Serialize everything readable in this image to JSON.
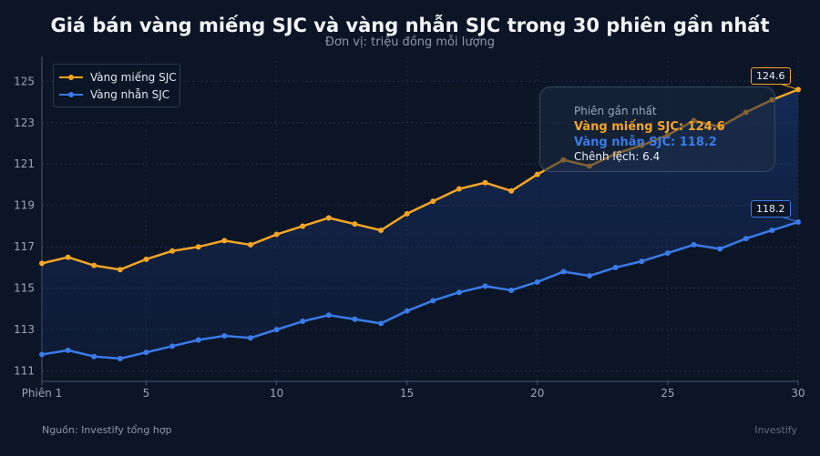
{
  "title": "Giá bán vàng miếng SJC và vàng nhẫn SJC trong 30 phiên gần nhất",
  "subtitle": "Đơn vị: triệu đồng mỗi lượng",
  "footer": {
    "source": "Nguồn: Investify tổng hợp",
    "brand": "Investify"
  },
  "colors": {
    "mieng": "#f5a524",
    "nhan": "#3b7bea",
    "background": "#0b1526"
  },
  "info_box": {
    "header": "Phiên gần nhất",
    "line_mieng": "Vàng miếng SJC: 124.6",
    "line_nhan": "Vàng nhẫn SJC: 118.2",
    "line_diff": "Chênh lệch: 6.4"
  },
  "end_labels": {
    "mieng": "124.6",
    "nhan": "118.2"
  },
  "chart_data": {
    "type": "line",
    "title": "Giá bán vàng miếng SJC và vàng nhẫn SJC trong 30 phiên gần nhất",
    "subtitle": "Đơn vị: triệu đồng mỗi lượng",
    "x": [
      1,
      2,
      3,
      4,
      5,
      6,
      7,
      8,
      9,
      10,
      11,
      12,
      13,
      14,
      15,
      16,
      17,
      18,
      19,
      20,
      21,
      22,
      23,
      24,
      25,
      26,
      27,
      28,
      29,
      30
    ],
    "x_ticks": [
      1,
      5,
      10,
      15,
      20,
      25,
      30
    ],
    "x_tick_labels": [
      "Phiên 1",
      "5",
      "10",
      "15",
      "20",
      "25",
      "30"
    ],
    "xlim": [
      1,
      30
    ],
    "y_ticks": [
      111,
      113,
      115,
      117,
      119,
      121,
      123,
      125
    ],
    "ylim": [
      110.5,
      126.2
    ],
    "grid": true,
    "legend": "top-left",
    "series": [
      {
        "name": "Vàng miếng SJC",
        "values": [
          116.2,
          116.5,
          116.1,
          115.9,
          116.4,
          116.8,
          117.0,
          117.3,
          117.1,
          117.6,
          118.0,
          118.4,
          118.1,
          117.8,
          118.6,
          119.2,
          119.8,
          120.1,
          119.7,
          120.5,
          121.2,
          120.9,
          121.5,
          121.9,
          122.4,
          123.1,
          122.8,
          123.5,
          124.1,
          124.6
        ]
      },
      {
        "name": "Vàng nhẫn SJC",
        "values": [
          111.8,
          112.0,
          111.7,
          111.6,
          111.9,
          112.2,
          112.5,
          112.7,
          112.6,
          113.0,
          113.4,
          113.7,
          113.5,
          113.3,
          113.9,
          114.4,
          114.8,
          115.1,
          114.9,
          115.3,
          115.8,
          115.6,
          116.0,
          116.3,
          116.7,
          117.1,
          116.9,
          117.4,
          117.8,
          118.2
        ]
      }
    ]
  }
}
